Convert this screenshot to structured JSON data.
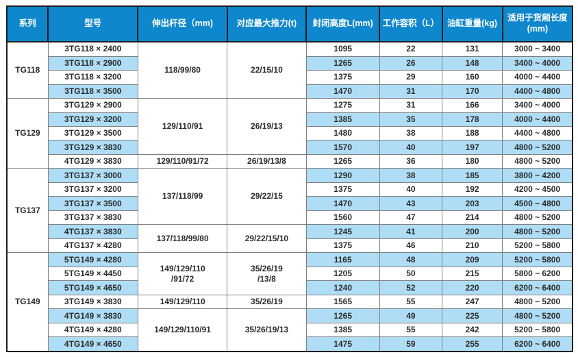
{
  "colors": {
    "header_bg": "#0e87cc",
    "header_text": "#ffffff",
    "row_alt": "#aeddf5",
    "text": "#2b2b2b",
    "border_light": "#7f7f7f",
    "border_heavy": "#1c1c1c"
  },
  "table": {
    "columns": [
      {
        "key": "series",
        "label": "系列"
      },
      {
        "key": "model",
        "label": "型号"
      },
      {
        "key": "rod",
        "label": "伸出杆径（mm)"
      },
      {
        "key": "thrust",
        "label": "对应最大推力(t)"
      },
      {
        "key": "closed_height",
        "label": "封闭高度L(mm)"
      },
      {
        "key": "volume",
        "label": "工作容积（L）"
      },
      {
        "key": "weight",
        "label": "油缸重量(kg)"
      },
      {
        "key": "box_length",
        "label": "适用于货厢长度\n(mm)"
      }
    ],
    "groups": [
      {
        "series": "TG118",
        "spans": [
          {
            "rod": "118/99/80",
            "thrust": "22/15/10",
            "rows": [
              {
                "model": "3TG118 × 2400",
                "closed_height": "1095",
                "volume": "22",
                "weight": "131",
                "box_length": "3000 ~ 3400"
              },
              {
                "model": "3TG118 × 2900",
                "closed_height": "1265",
                "volume": "26",
                "weight": "148",
                "box_length": "3400 ~ 4000"
              },
              {
                "model": "3TG118 × 3200",
                "closed_height": "1375",
                "volume": "29",
                "weight": "160",
                "box_length": "4000 ~ 4400"
              },
              {
                "model": "3TG118 × 3500",
                "closed_height": "1470",
                "volume": "31",
                "weight": "170",
                "box_length": "4400 ~ 4800"
              }
            ]
          }
        ]
      },
      {
        "series": "TG129",
        "spans": [
          {
            "rod": "129/110/91",
            "thrust": "26/19/13",
            "rows": [
              {
                "model": "3TG129 × 2900",
                "closed_height": "1275",
                "volume": "31",
                "weight": "166",
                "box_length": "3400 ~ 4000"
              },
              {
                "model": "3TG129 × 3200",
                "closed_height": "1385",
                "volume": "35",
                "weight": "178",
                "box_length": "4000 ~ 4400"
              },
              {
                "model": "3TG129 × 3500",
                "closed_height": "1480",
                "volume": "38",
                "weight": "188",
                "box_length": "4400 ~ 4800"
              },
              {
                "model": "3TG129 × 3830",
                "closed_height": "1570",
                "volume": "40",
                "weight": "197",
                "box_length": "4800 ~ 5200"
              }
            ]
          },
          {
            "rod": "129/110/91/72",
            "thrust": "26/19/13/8",
            "rows": [
              {
                "model": "4TG129 × 3830",
                "closed_height": "1265",
                "volume": "36",
                "weight": "180",
                "box_length": "4800 ~ 5200"
              }
            ]
          }
        ]
      },
      {
        "series": "TG137",
        "spans": [
          {
            "rod": "137/118/99",
            "thrust": "29/22/15",
            "rows": [
              {
                "model": "3TG137 × 3000",
                "closed_height": "1290",
                "volume": "38",
                "weight": "185",
                "box_length": "3800 ~ 4200"
              },
              {
                "model": "3TG137 × 3200",
                "closed_height": "1375",
                "volume": "40",
                "weight": "192",
                "box_length": "4200 ~ 4500"
              },
              {
                "model": "3TG137 × 3500",
                "closed_height": "1470",
                "volume": "43",
                "weight": "203",
                "box_length": "4500 ~ 4800"
              },
              {
                "model": "3TG137 × 3830",
                "closed_height": "1560",
                "volume": "47",
                "weight": "214",
                "box_length": "4800 ~ 5200"
              }
            ]
          },
          {
            "rod": "137/118/99/80",
            "thrust": "29/22/15/10",
            "rows": [
              {
                "model": "4TG137 × 3830",
                "closed_height": "1245",
                "volume": "41",
                "weight": "200",
                "box_length": "4800 ~ 5200"
              },
              {
                "model": "4TG137 × 4280",
                "closed_height": "1375",
                "volume": "46",
                "weight": "210",
                "box_length": "5200 ~ 5800"
              }
            ]
          }
        ]
      },
      {
        "series": "TG149",
        "spans": [
          {
            "rod": "149/129/110\n/91/72",
            "thrust": "35/26/19\n/13/8",
            "rows": [
              {
                "model": "5TG149 × 4280",
                "closed_height": "1165",
                "volume": "48",
                "weight": "209",
                "box_length": "5200 ~ 5800"
              },
              {
                "model": "5TG149 × 4450",
                "closed_height": "1205",
                "volume": "50",
                "weight": "215",
                "box_length": "5800 ~ 6200"
              },
              {
                "model": "5TG149 × 4650",
                "closed_height": "1240",
                "volume": "52",
                "weight": "220",
                "box_length": "6200 ~ 6400"
              }
            ]
          },
          {
            "rod": "149/129/110",
            "thrust": "35/26/19",
            "rows": [
              {
                "model": "3TG149 × 3830",
                "closed_height": "1565",
                "volume": "55",
                "weight": "247",
                "box_length": "4800 ~ 5200"
              }
            ]
          },
          {
            "rod": "149/129/110/91",
            "thrust": "35/26/19/13",
            "rows": [
              {
                "model": "4TG149 × 3830",
                "closed_height": "1265",
                "volume": "49",
                "weight": "225",
                "box_length": "4800 ~ 5200"
              },
              {
                "model": "4TG149 × 4280",
                "closed_height": "1385",
                "volume": "55",
                "weight": "242",
                "box_length": "5200 ~ 5800"
              },
              {
                "model": "4TG149 × 4650",
                "closed_height": "1475",
                "volume": "59",
                "weight": "255",
                "box_length": "6200 ~ 6400"
              }
            ]
          }
        ]
      }
    ]
  }
}
